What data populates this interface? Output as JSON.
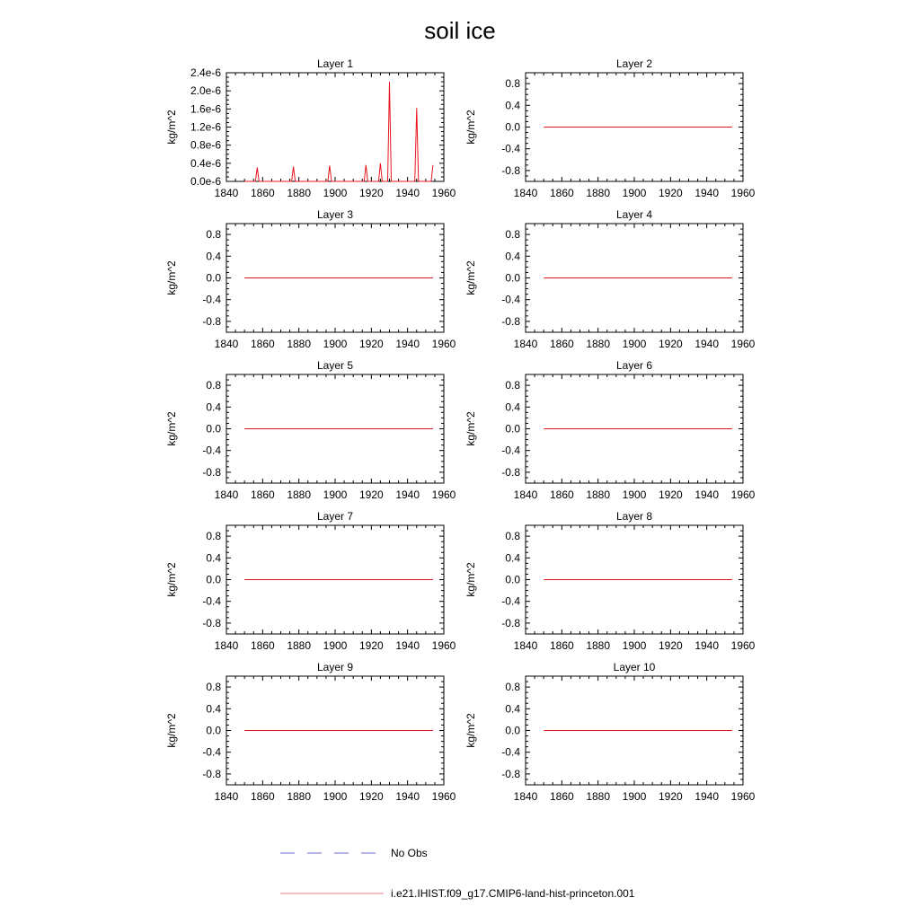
{
  "figure_title": "soil ice",
  "legend": {
    "entries": [
      {
        "label": "No Obs",
        "color": "#6b6bd6",
        "dash": "dashed"
      },
      {
        "label": "i.e21.IHIST.f09_g17.CMIP6-land-hist-princeton.001",
        "color": "#f08080",
        "dash": "solid"
      }
    ]
  },
  "chart_data": [
    {
      "type": "line",
      "title": "Layer 1",
      "ylabel": "kg/m^2",
      "xlim": [
        1840,
        1960
      ],
      "ylim": [
        0,
        2.4e-06
      ],
      "xticks": [
        "1840",
        "1860",
        "1880",
        "1900",
        "1920",
        "1940",
        "1960"
      ],
      "yticks": [
        "0.0e-6",
        "0.4e-6",
        "0.8e-6",
        "1.2e-6",
        "1.6e-6",
        "2.0e-6",
        "2.4e-6"
      ],
      "yticks_values": [
        0,
        4e-07,
        8e-07,
        1.2e-06,
        1.6e-06,
        2e-06,
        2.4e-06
      ],
      "series": [
        {
          "color": "#e8141c",
          "x": [
            1850,
            1856,
            1857,
            1858,
            1876,
            1877,
            1878,
            1896,
            1897,
            1898,
            1916,
            1917,
            1918,
            1924,
            1925,
            1926,
            1929,
            1930,
            1931,
            1944,
            1945,
            1946,
            1953,
            1954
          ],
          "y": [
            0,
            0,
            3.1e-07,
            0,
            0,
            3.3e-07,
            0,
            0,
            3.5e-07,
            0,
            0,
            3.6e-07,
            0,
            0,
            4e-07,
            0,
            0,
            2.2e-06,
            0,
            0,
            1.62e-06,
            0,
            0,
            3.6e-07
          ]
        }
      ]
    },
    {
      "type": "line",
      "title": "Layer 2",
      "ylabel": "kg/m^2",
      "xlim": [
        1840,
        1960
      ],
      "ylim": [
        -1,
        1
      ],
      "xticks": [
        "1840",
        "1860",
        "1880",
        "1900",
        "1920",
        "1940",
        "1960"
      ],
      "yticks": [
        "-0.8",
        "-0.4",
        "0.0",
        "0.4",
        "0.8"
      ],
      "yticks_values": [
        -0.8,
        -0.4,
        0,
        0.4,
        0.8
      ],
      "series": [
        {
          "color": "#e8141c",
          "x": [
            1850,
            1954
          ],
          "y": [
            0,
            0
          ]
        }
      ]
    },
    {
      "type": "line",
      "title": "Layer 3",
      "ylabel": "kg/m^2",
      "xlim": [
        1840,
        1960
      ],
      "ylim": [
        -1,
        1
      ],
      "xticks": [
        "1840",
        "1860",
        "1880",
        "1900",
        "1920",
        "1940",
        "1960"
      ],
      "yticks": [
        "-0.8",
        "-0.4",
        "0.0",
        "0.4",
        "0.8"
      ],
      "yticks_values": [
        -0.8,
        -0.4,
        0,
        0.4,
        0.8
      ],
      "series": [
        {
          "color": "#e8141c",
          "x": [
            1850,
            1954
          ],
          "y": [
            0,
            0
          ]
        }
      ]
    },
    {
      "type": "line",
      "title": "Layer 4",
      "ylabel": "kg/m^2",
      "xlim": [
        1840,
        1960
      ],
      "ylim": [
        -1,
        1
      ],
      "xticks": [
        "1840",
        "1860",
        "1880",
        "1900",
        "1920",
        "1940",
        "1960"
      ],
      "yticks": [
        "-0.8",
        "-0.4",
        "0.0",
        "0.4",
        "0.8"
      ],
      "yticks_values": [
        -0.8,
        -0.4,
        0,
        0.4,
        0.8
      ],
      "series": [
        {
          "color": "#e8141c",
          "x": [
            1850,
            1954
          ],
          "y": [
            0,
            0
          ]
        }
      ]
    },
    {
      "type": "line",
      "title": "Layer 5",
      "ylabel": "kg/m^2",
      "xlim": [
        1840,
        1960
      ],
      "ylim": [
        -1,
        1
      ],
      "xticks": [
        "1840",
        "1860",
        "1880",
        "1900",
        "1920",
        "1940",
        "1960"
      ],
      "yticks": [
        "-0.8",
        "-0.4",
        "0.0",
        "0.4",
        "0.8"
      ],
      "yticks_values": [
        -0.8,
        -0.4,
        0,
        0.4,
        0.8
      ],
      "series": [
        {
          "color": "#e8141c",
          "x": [
            1850,
            1954
          ],
          "y": [
            0,
            0
          ]
        }
      ]
    },
    {
      "type": "line",
      "title": "Layer 6",
      "ylabel": "kg/m^2",
      "xlim": [
        1840,
        1960
      ],
      "ylim": [
        -1,
        1
      ],
      "xticks": [
        "1840",
        "1860",
        "1880",
        "1900",
        "1920",
        "1940",
        "1960"
      ],
      "yticks": [
        "-0.8",
        "-0.4",
        "0.0",
        "0.4",
        "0.8"
      ],
      "yticks_values": [
        -0.8,
        -0.4,
        0,
        0.4,
        0.8
      ],
      "series": [
        {
          "color": "#e8141c",
          "x": [
            1850,
            1954
          ],
          "y": [
            0,
            0
          ]
        }
      ]
    },
    {
      "type": "line",
      "title": "Layer 7",
      "ylabel": "kg/m^2",
      "xlim": [
        1840,
        1960
      ],
      "ylim": [
        -1,
        1
      ],
      "xticks": [
        "1840",
        "1860",
        "1880",
        "1900",
        "1920",
        "1940",
        "1960"
      ],
      "yticks": [
        "-0.8",
        "-0.4",
        "0.0",
        "0.4",
        "0.8"
      ],
      "yticks_values": [
        -0.8,
        -0.4,
        0,
        0.4,
        0.8
      ],
      "series": [
        {
          "color": "#e8141c",
          "x": [
            1850,
            1954
          ],
          "y": [
            0,
            0
          ]
        }
      ]
    },
    {
      "type": "line",
      "title": "Layer 8",
      "ylabel": "kg/m^2",
      "xlim": [
        1840,
        1960
      ],
      "ylim": [
        -1,
        1
      ],
      "xticks": [
        "1840",
        "1860",
        "1880",
        "1900",
        "1920",
        "1940",
        "1960"
      ],
      "yticks": [
        "-0.8",
        "-0.4",
        "0.0",
        "0.4",
        "0.8"
      ],
      "yticks_values": [
        -0.8,
        -0.4,
        0,
        0.4,
        0.8
      ],
      "series": [
        {
          "color": "#e8141c",
          "x": [
            1850,
            1954
          ],
          "y": [
            0,
            0
          ]
        }
      ]
    },
    {
      "type": "line",
      "title": "Layer 9",
      "ylabel": "kg/m^2",
      "xlim": [
        1840,
        1960
      ],
      "ylim": [
        -1,
        1
      ],
      "xticks": [
        "1840",
        "1860",
        "1880",
        "1900",
        "1920",
        "1940",
        "1960"
      ],
      "yticks": [
        "-0.8",
        "-0.4",
        "0.0",
        "0.4",
        "0.8"
      ],
      "yticks_values": [
        -0.8,
        -0.4,
        0,
        0.4,
        0.8
      ],
      "series": [
        {
          "color": "#e8141c",
          "x": [
            1850,
            1954
          ],
          "y": [
            0,
            0
          ]
        }
      ]
    },
    {
      "type": "line",
      "title": "Layer 10",
      "ylabel": "kg/m^2",
      "xlim": [
        1840,
        1960
      ],
      "ylim": [
        -1,
        1
      ],
      "xticks": [
        "1840",
        "1860",
        "1880",
        "1900",
        "1920",
        "1940",
        "1960"
      ],
      "yticks": [
        "-0.8",
        "-0.4",
        "0.0",
        "0.4",
        "0.8"
      ],
      "yticks_values": [
        -0.8,
        -0.4,
        0,
        0.4,
        0.8
      ],
      "series": [
        {
          "color": "#e8141c",
          "x": [
            1850,
            1954
          ],
          "y": [
            0,
            0
          ]
        }
      ]
    }
  ]
}
